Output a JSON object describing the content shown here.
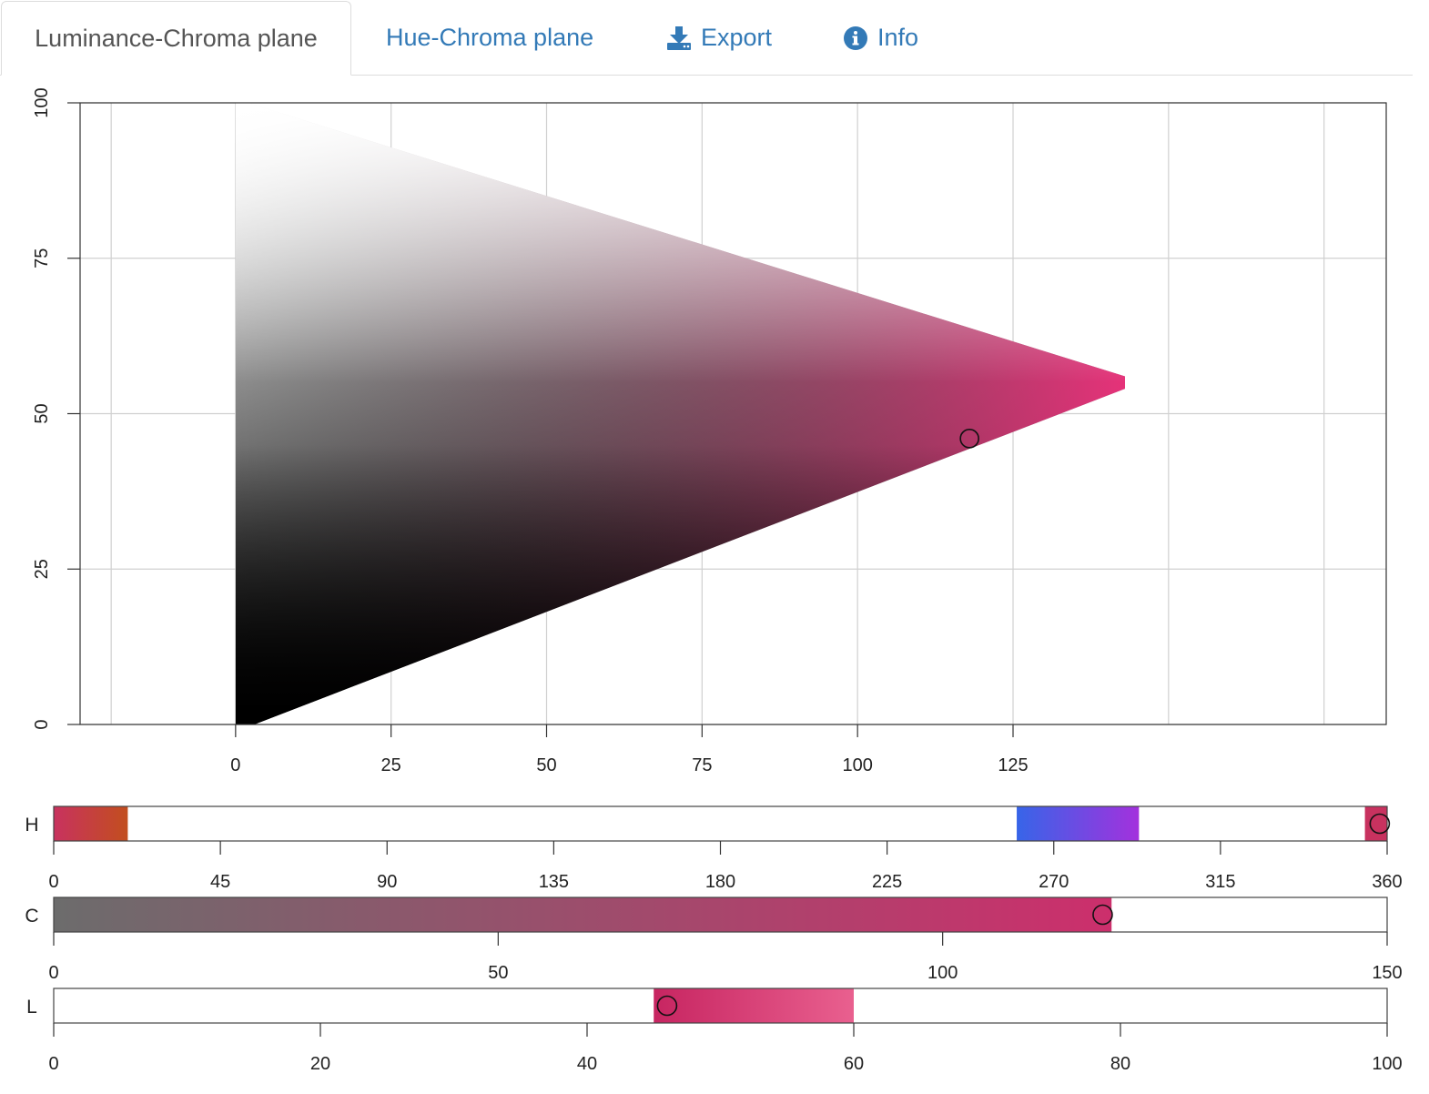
{
  "tabs": [
    {
      "label": "Luminance-Chroma plane",
      "active": true
    },
    {
      "label": "Hue-Chroma plane",
      "active": false
    },
    {
      "label": "Export",
      "active": false,
      "icon": "download-icon"
    },
    {
      "label": "Info",
      "active": false,
      "icon": "info-icon"
    }
  ],
  "colors": {
    "tab_link": "#337ab7",
    "tab_active_text": "#555555",
    "grid": "#d0d0d0",
    "axis": "#333333",
    "hue_magenta": "#e8327a"
  },
  "chart_data": [
    {
      "type": "heatmap",
      "title": "",
      "xlabel": "",
      "ylabel": "",
      "x_ticks": [
        "0",
        "25",
        "50",
        "75",
        "100",
        "125"
      ],
      "y_ticks": [
        "0",
        "25",
        "50",
        "75",
        "100"
      ],
      "xlim": [
        -25,
        185
      ],
      "ylim": [
        0,
        100
      ],
      "grid": true,
      "hue": 358,
      "gamut_apex": {
        "chroma": 143,
        "luminance": 55
      },
      "gamut_polygon": [
        [
          0,
          0
        ],
        [
          3,
          0
        ],
        [
          143,
          54
        ],
        [
          143,
          56
        ],
        [
          2,
          100
        ],
        [
          0,
          100
        ]
      ],
      "selected": {
        "chroma": 118,
        "luminance": 46
      }
    },
    {
      "type": "bar",
      "label": "H",
      "ticks": [
        "0",
        "45",
        "90",
        "135",
        "180",
        "225",
        "270",
        "315",
        "360"
      ],
      "xlim": [
        0,
        360
      ],
      "gradient_segments": [
        {
          "from": 0,
          "to": 20,
          "colors": [
            "#c8325f",
            "#c24e1e"
          ]
        },
        {
          "from": 260,
          "to": 293,
          "colors": [
            "#3765e8",
            "#a331dd"
          ]
        },
        {
          "from": 354,
          "to": 360,
          "colors": [
            "#c8325f",
            "#c8325f"
          ]
        }
      ],
      "selected": 358
    },
    {
      "type": "bar",
      "label": "C",
      "ticks": [
        "0",
        "50",
        "100",
        "150"
      ],
      "xlim": [
        0,
        150
      ],
      "gradient_segments": [
        {
          "from": 0,
          "to": 119,
          "colors": [
            "#6c6c6c",
            "#cc2f6c"
          ]
        }
      ],
      "selected": 118
    },
    {
      "type": "bar",
      "label": "L",
      "ticks": [
        "0",
        "20",
        "40",
        "60",
        "80",
        "100"
      ],
      "xlim": [
        0,
        100
      ],
      "gradient_segments": [
        {
          "from": 45,
          "to": 60,
          "colors": [
            "#c72561",
            "#e9608f"
          ]
        }
      ],
      "selected": 46
    }
  ]
}
